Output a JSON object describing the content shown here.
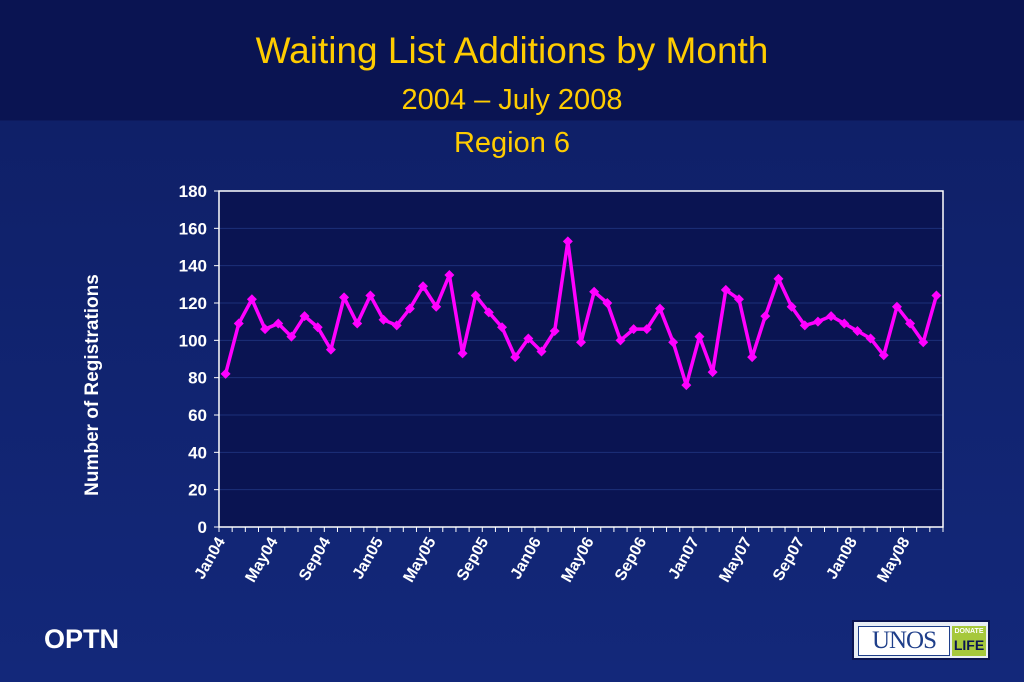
{
  "header": {
    "title": "Waiting List Additions by Month",
    "subtitle": "2004 – July 2008",
    "region": "Region 6"
  },
  "footer": {
    "org": "OPTN",
    "logo_text": "UNOS",
    "logo_badge_top": "DONATE",
    "logo_badge_bottom": "LIFE"
  },
  "colors": {
    "series": "#ff00ff",
    "title": "#ffcc00",
    "axis_text": "#ffffff",
    "plot_bg": "#0a1452"
  },
  "chart_data": {
    "type": "line",
    "ylabel": "Number of Registrations",
    "xlabel": "",
    "ylim": [
      0,
      180
    ],
    "yticks": [
      0,
      20,
      40,
      60,
      80,
      100,
      120,
      140,
      160,
      180
    ],
    "grid": true,
    "legend": "none",
    "x": [
      "Jan04",
      "Feb04",
      "Mar04",
      "Apr04",
      "May04",
      "Jun04",
      "Jul04",
      "Aug04",
      "Sep04",
      "Oct04",
      "Nov04",
      "Dec04",
      "Jan05",
      "Feb05",
      "Mar05",
      "Apr05",
      "May05",
      "Jun05",
      "Jul05",
      "Aug05",
      "Sep05",
      "Oct05",
      "Nov05",
      "Dec05",
      "Jan06",
      "Feb06",
      "Mar06",
      "Apr06",
      "May06",
      "Jun06",
      "Jul06",
      "Aug06",
      "Sep06",
      "Oct06",
      "Nov06",
      "Dec06",
      "Jan07",
      "Feb07",
      "Mar07",
      "Apr07",
      "May07",
      "Jun07",
      "Jul07",
      "Aug07",
      "Sep07",
      "Oct07",
      "Nov07",
      "Dec07",
      "Jan08",
      "Feb08",
      "Mar08",
      "Apr08",
      "May08",
      "Jun08",
      "Jul08"
    ],
    "x_tick_labels": [
      "Jan04",
      "May04",
      "Sep04",
      "Jan05",
      "May05",
      "Sep05",
      "Jan06",
      "May06",
      "Sep06",
      "Jan07",
      "May07",
      "Sep07",
      "Jan08",
      "May08"
    ],
    "series": [
      {
        "values": [
          82,
          109,
          122,
          106,
          109,
          102,
          113,
          107,
          95,
          123,
          109,
          124,
          111,
          108,
          117,
          129,
          118,
          135,
          93,
          124,
          115,
          107,
          91,
          101,
          94,
          105,
          153,
          99,
          126,
          120,
          100,
          106,
          106,
          117,
          99,
          76,
          102,
          83,
          127,
          122,
          91,
          113,
          133,
          118,
          108,
          110,
          113,
          109,
          105,
          101,
          92,
          118,
          109,
          99,
          124
        ]
      }
    ]
  }
}
